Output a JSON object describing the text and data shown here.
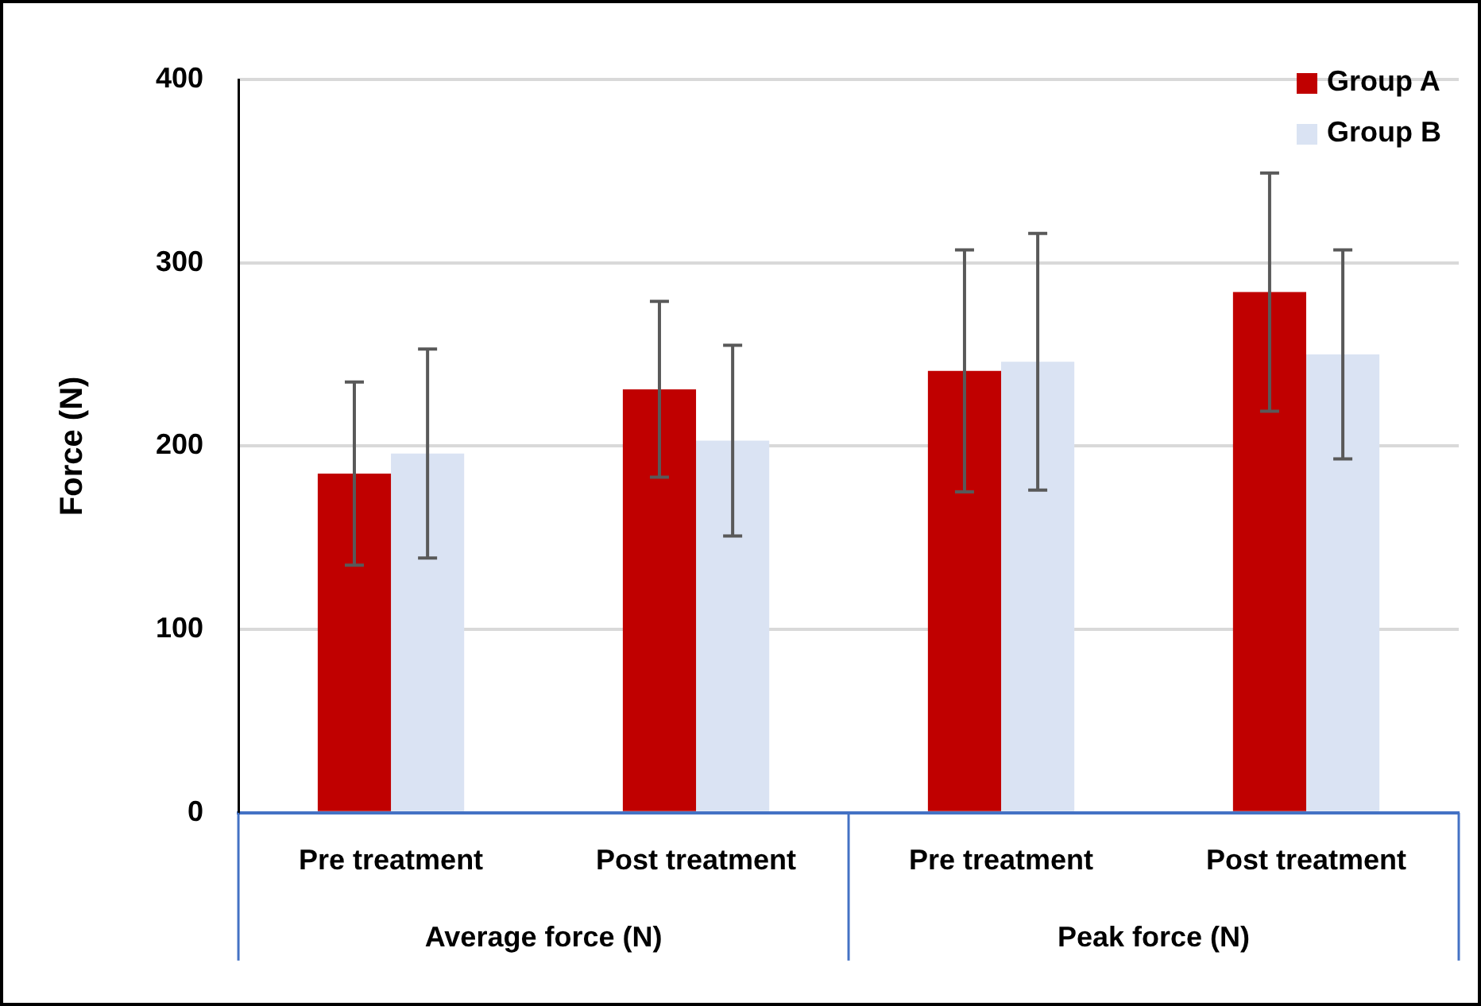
{
  "chart_data": {
    "type": "bar",
    "ylabel": "Force (N)",
    "categories": [
      "Pre treatment",
      "Post treatment",
      "Pre treatment",
      "Post treatment"
    ],
    "annotations": [
      "Average force (N)",
      "Peak force (N)"
    ],
    "series": [
      {
        "name": "Group A",
        "color": "#c00000",
        "values": [
          185,
          231,
          241,
          284
        ],
        "errors": [
          50,
          48,
          66,
          65
        ]
      },
      {
        "name": "Group B",
        "color": "#dae3f3",
        "values": [
          196,
          203,
          246,
          250
        ],
        "errors": [
          57,
          52,
          70,
          57
        ]
      }
    ],
    "ylim": [
      0,
      400
    ],
    "yticks": [
      0,
      100,
      200,
      300,
      400
    ],
    "grid": "y",
    "legend": "top right"
  }
}
